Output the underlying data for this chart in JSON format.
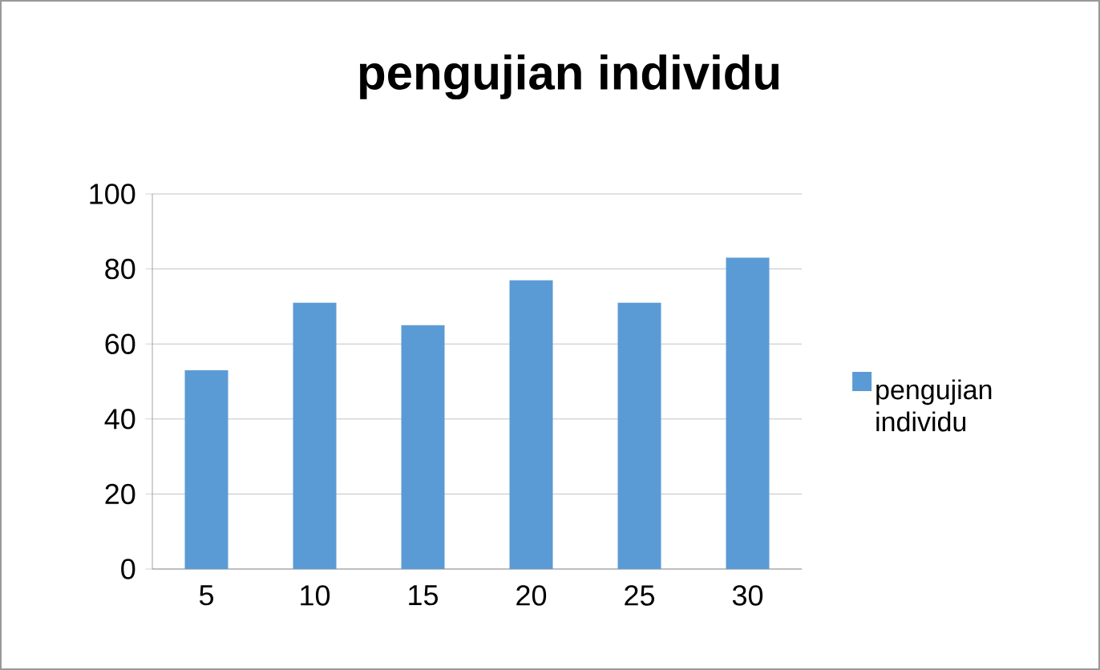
{
  "chart_data": {
    "type": "bar",
    "title": "pengujian individu",
    "categories": [
      "5",
      "10",
      "15",
      "20",
      "25",
      "30"
    ],
    "series": [
      {
        "name": "pengujian individu",
        "color": "#5b9bd5",
        "values": [
          53,
          71,
          65,
          77,
          71,
          83
        ]
      }
    ],
    "ylim": [
      0,
      100
    ],
    "yticks": [
      0,
      20,
      40,
      60,
      80,
      100
    ],
    "grid": "y",
    "legend": "right"
  }
}
